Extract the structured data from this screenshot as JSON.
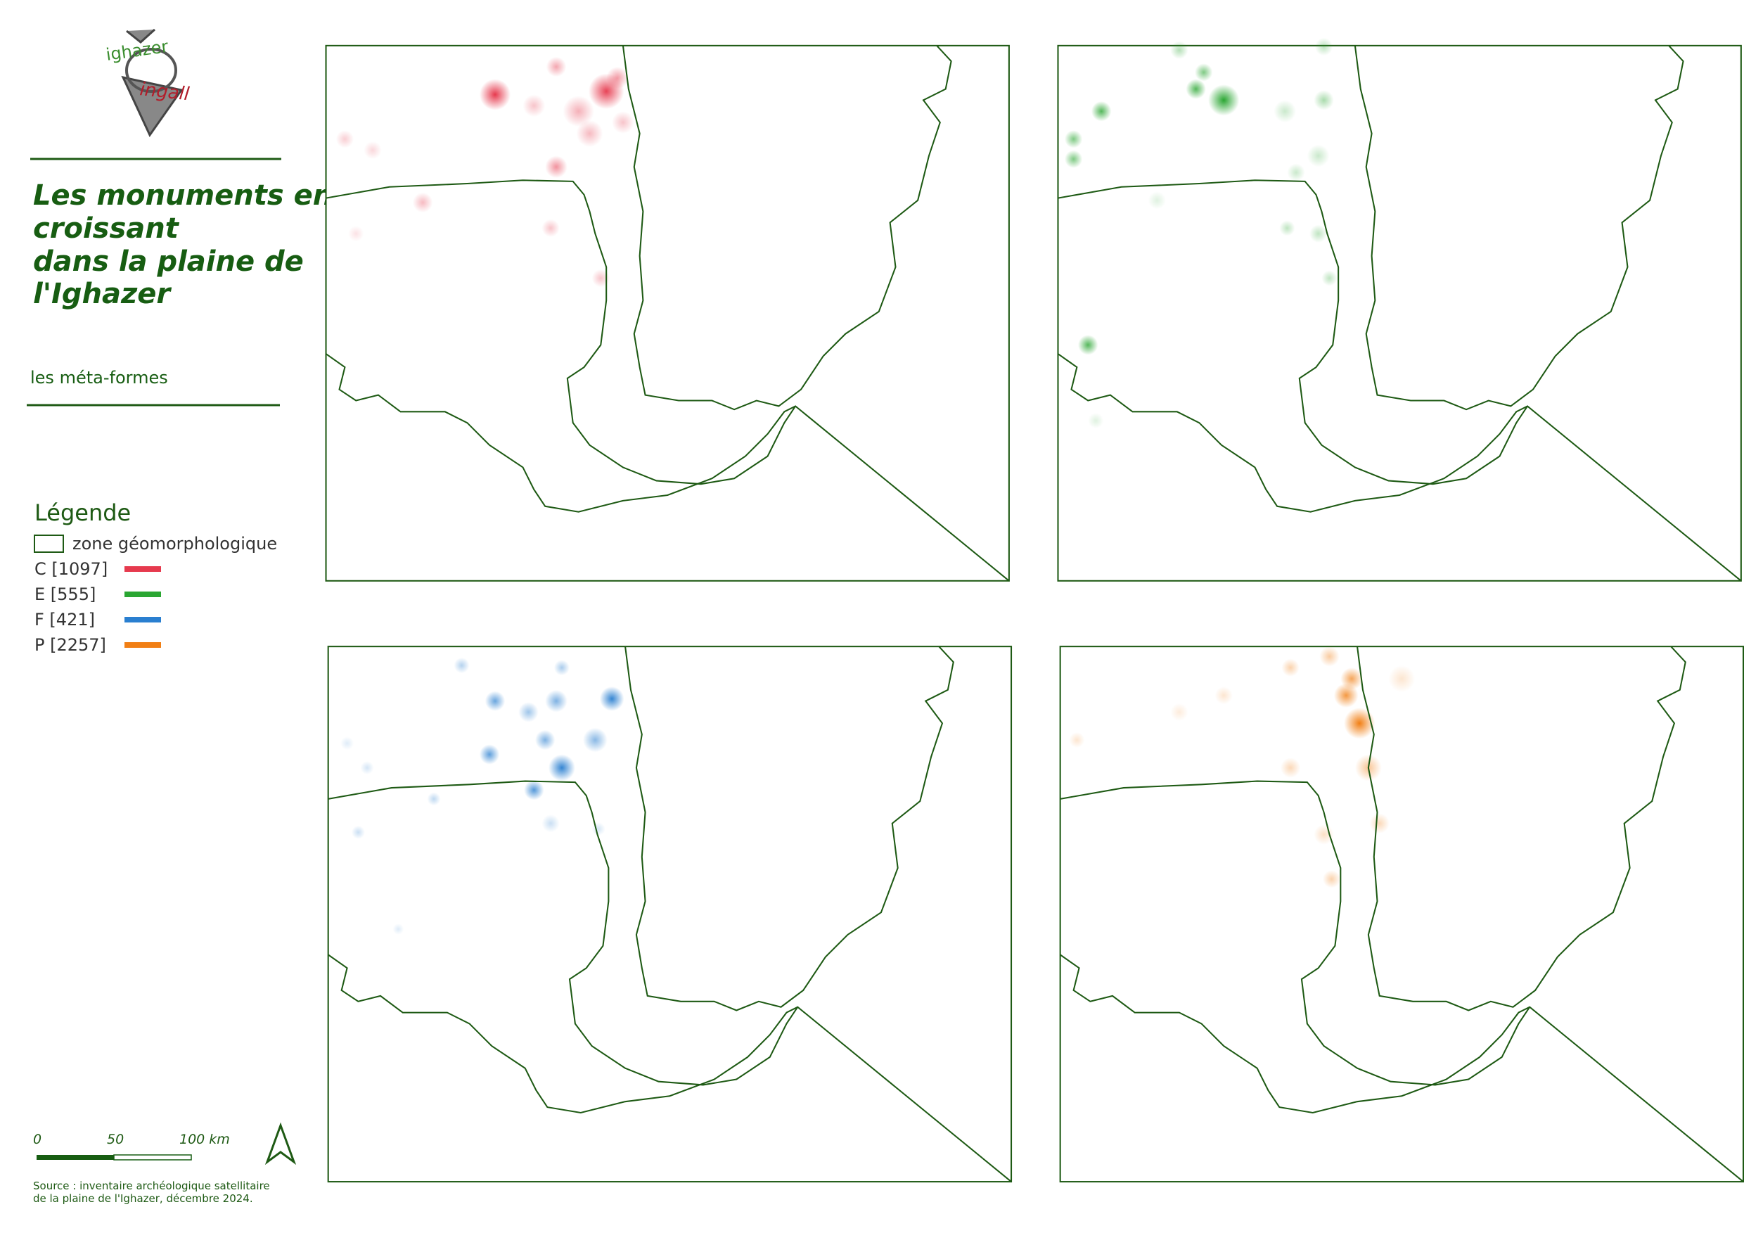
{
  "logo": {
    "top": "ighazer",
    "bottom": "ingall"
  },
  "header": {
    "title": [
      "Les monuments en",
      "croissant",
      "dans la plaine de",
      "l'Ighazer"
    ],
    "subtitle": "les méta-formes"
  },
  "legend": {
    "title": "Légende",
    "zone": "zone géomorphologique",
    "items": [
      {
        "label": "C [1097]",
        "color": "#e63a4e"
      },
      {
        "label": "E [555]",
        "color": "#2aa632"
      },
      {
        "label": "F [421]",
        "color": "#2a7fd0"
      },
      {
        "label": "P [2257]",
        "color": "#f17f14"
      }
    ]
  },
  "scale": {
    "labels": [
      "0",
      "50",
      "100 km"
    ]
  },
  "source": [
    "Source : inventaire archéologique satellitaire",
    "de la plaine de l'Ighazer, décembre 2024."
  ]
}
